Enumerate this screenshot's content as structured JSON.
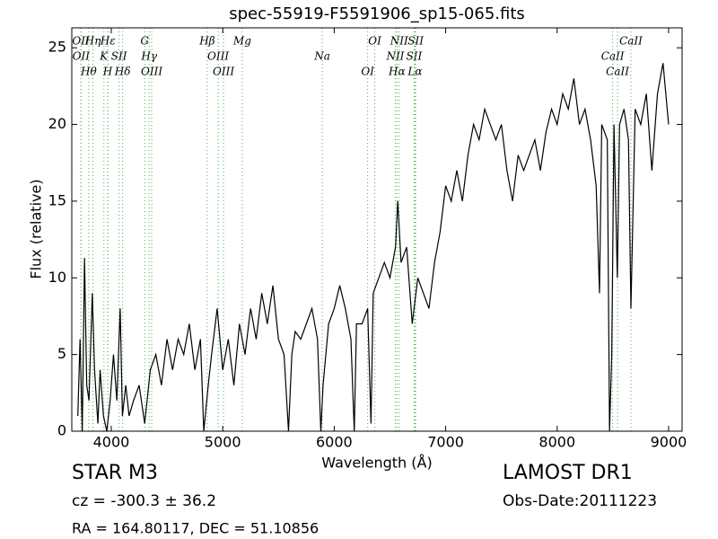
{
  "chart_data": {
    "type": "line",
    "title": "spec-55919-F5591906_sp15-065.fits",
    "x_label": "Wavelength (Å)",
    "y_label": "Flux (relative)",
    "color": "#000000",
    "line_color": "#4caf50",
    "x": [
      3700,
      3720,
      3740,
      3760,
      3780,
      3800,
      3830,
      3850,
      3880,
      3900,
      3930,
      3960,
      3990,
      4020,
      4050,
      4080,
      4100,
      4130,
      4160,
      4200,
      4250,
      4300,
      4350,
      4400,
      4450,
      4500,
      4550,
      4600,
      4650,
      4700,
      4750,
      4800,
      4830,
      4870,
      4900,
      4950,
      5000,
      5050,
      5100,
      5150,
      5200,
      5250,
      5300,
      5350,
      5400,
      5450,
      5500,
      5550,
      5590,
      5620,
      5650,
      5700,
      5750,
      5800,
      5850,
      5880,
      5900,
      5950,
      6000,
      6050,
      6100,
      6150,
      6180,
      6200,
      6250,
      6300,
      6330,
      6350,
      6400,
      6450,
      6500,
      6550,
      6570,
      6600,
      6650,
      6700,
      6750,
      6800,
      6850,
      6900,
      6950,
      7000,
      7050,
      7100,
      7150,
      7200,
      7250,
      7300,
      7350,
      7400,
      7450,
      7500,
      7550,
      7600,
      7650,
      7700,
      7750,
      7800,
      7850,
      7900,
      7950,
      8000,
      8050,
      8100,
      8150,
      8200,
      8250,
      8300,
      8350,
      8380,
      8400,
      8450,
      8470,
      8490,
      8510,
      8540,
      8560,
      8600,
      8640,
      8662,
      8700,
      8750,
      8800,
      8850,
      8900,
      8950,
      9000
    ],
    "values": [
      1,
      6,
      0,
      11.3,
      3,
      2,
      9,
      4,
      0.5,
      4,
      1,
      0,
      2,
      5,
      2,
      8,
      1,
      3,
      1,
      2,
      3,
      0.5,
      4,
      5,
      3,
      6,
      4,
      6,
      5,
      7,
      4,
      6,
      0,
      3,
      5,
      8,
      4,
      6,
      3,
      7,
      5,
      8,
      6,
      9,
      7,
      9.5,
      6,
      5,
      0,
      5,
      6.5,
      6,
      7,
      8,
      6,
      0,
      3,
      7,
      8,
      9.5,
      8,
      6,
      0,
      7,
      7,
      8,
      0.5,
      9,
      10,
      11,
      10,
      12,
      15,
      11,
      12,
      7,
      10,
      9,
      8,
      11,
      13,
      16,
      15,
      17,
      15,
      18,
      20,
      19,
      21,
      20,
      19,
      20,
      17,
      15,
      18,
      17,
      18,
      19,
      17,
      19.5,
      21,
      20,
      22,
      21,
      23,
      20,
      21,
      19,
      16,
      9,
      20,
      19,
      0,
      5,
      20,
      10,
      20,
      21,
      19,
      8,
      21,
      20,
      22,
      17,
      22,
      24,
      20
    ],
    "xlim": [
      3646,
      9121
    ],
    "ylim": [
      0,
      26.3
    ],
    "xticks": [
      4000,
      5000,
      6000,
      7000,
      8000,
      9000
    ],
    "yticks": [
      0,
      5,
      10,
      15,
      20,
      25
    ],
    "grid": false,
    "features": [
      {
        "wavelength": 3727,
        "label": "OII"
      },
      {
        "wavelength": 3729,
        "label": "OII"
      },
      {
        "wavelength": 3798,
        "label": "Hθ"
      },
      {
        "wavelength": 3835,
        "label": "Hη"
      },
      {
        "wavelength": 3934,
        "label": "K"
      },
      {
        "wavelength": 3968,
        "label": "H"
      },
      {
        "wavelength": 3970,
        "label": "Hε"
      },
      {
        "wavelength": 4070,
        "label": "SII"
      },
      {
        "wavelength": 4102,
        "label": "Hδ"
      },
      {
        "wavelength": 4300,
        "label": "G"
      },
      {
        "wavelength": 4340,
        "label": "Hγ"
      },
      {
        "wavelength": 4363,
        "label": "OIII"
      },
      {
        "wavelength": 4861,
        "label": "Hβ"
      },
      {
        "wavelength": 4959,
        "label": "OIII"
      },
      {
        "wavelength": 5007,
        "label": "OIII"
      },
      {
        "wavelength": 5175,
        "label": "Mg"
      },
      {
        "wavelength": 5893,
        "label": "Na"
      },
      {
        "wavelength": 6300,
        "label": "OI"
      },
      {
        "wavelength": 6364,
        "label": "OI"
      },
      {
        "wavelength": 6548,
        "label": "NII"
      },
      {
        "wavelength": 6563,
        "label": "Hα"
      },
      {
        "wavelength": 6583,
        "label": "NII"
      },
      {
        "wavelength": 6717,
        "label": "SII"
      },
      {
        "wavelength": 6725,
        "label": "Lα"
      },
      {
        "wavelength": 6731,
        "label": "SII"
      },
      {
        "wavelength": 8498,
        "label": "CaII"
      },
      {
        "wavelength": 8542,
        "label": "CaII"
      },
      {
        "wavelength": 8662,
        "label": "CaII"
      }
    ],
    "annotations": {
      "object": "STAR   M3",
      "redshift": "cz = -300.3 ± 36.2",
      "coords": "RA = 164.80117, DEC = 51.10856",
      "survey": "LAMOST DR1",
      "date": "Obs-Date:20111223"
    }
  }
}
